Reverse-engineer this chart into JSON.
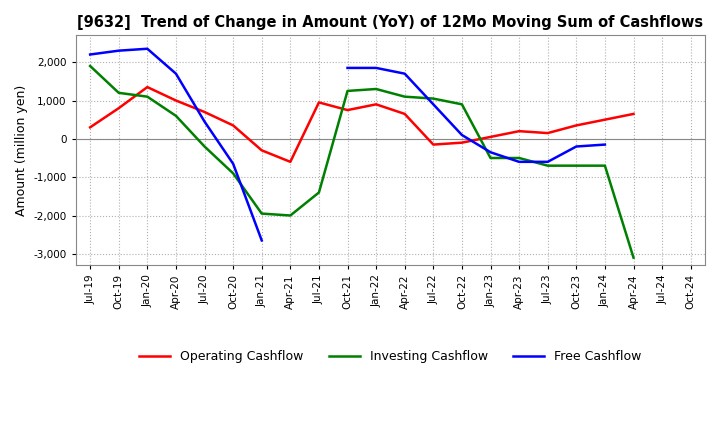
{
  "title": "[9632]  Trend of Change in Amount (YoY) of 12Mo Moving Sum of Cashflows",
  "ylabel": "Amount (million yen)",
  "ylim": [
    -3300,
    2700
  ],
  "yticks": [
    -3000,
    -2000,
    -1000,
    0,
    1000,
    2000
  ],
  "background_color": "#ffffff",
  "grid_color": "#b0b0b0",
  "x_labels": [
    "Jul-19",
    "Oct-19",
    "Jan-20",
    "Apr-20",
    "Jul-20",
    "Oct-20",
    "Jan-21",
    "Apr-21",
    "Jul-21",
    "Oct-21",
    "Jan-22",
    "Apr-22",
    "Jul-22",
    "Oct-22",
    "Jan-23",
    "Apr-23",
    "Jul-23",
    "Oct-23",
    "Jan-24",
    "Apr-24",
    "Jul-24",
    "Oct-24"
  ],
  "operating_cashflow": [
    300,
    800,
    1350,
    1000,
    700,
    350,
    -300,
    -600,
    950,
    750,
    900,
    650,
    -150,
    -100,
    50,
    200,
    150,
    350,
    500,
    650,
    null,
    null
  ],
  "investing_cashflow": [
    1900,
    1200,
    1100,
    600,
    -200,
    -900,
    -1950,
    -2000,
    -1400,
    1250,
    1300,
    1100,
    1050,
    900,
    -500,
    -500,
    -700,
    -700,
    -700,
    -3100,
    null,
    null
  ],
  "free_cashflow": [
    2200,
    2300,
    2350,
    1700,
    450,
    -650,
    -2650,
    null,
    null,
    1850,
    1850,
    1700,
    900,
    100,
    -350,
    -600,
    -600,
    -200,
    -150,
    null,
    null,
    null
  ],
  "operating_color": "#ff0000",
  "investing_color": "#008000",
  "free_color": "#0000ff",
  "line_width": 1.8
}
